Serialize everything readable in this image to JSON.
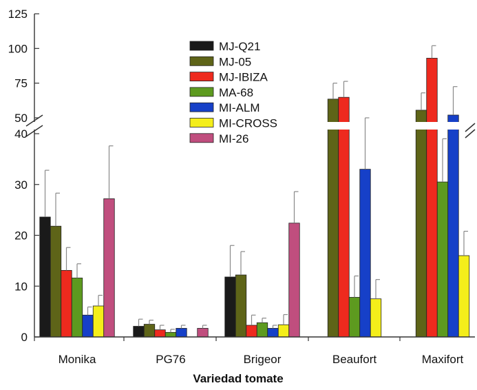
{
  "chart_data": {
    "type": "bar",
    "xlabel": "Variedad tomate",
    "ylabel": "",
    "axis_break": {
      "lower_max": 40,
      "upper_min": 50,
      "upper_max": 125
    },
    "yticks_lower": [
      0,
      10,
      20,
      30,
      40
    ],
    "yticks_upper": [
      50,
      75,
      100,
      125
    ],
    "ytick_labels_lower": [
      "0",
      "10",
      "20",
      "30",
      "40"
    ],
    "ytick_labels_upper": [
      "50",
      "75",
      "100",
      "125"
    ],
    "categories": [
      "Monika",
      "PG76",
      "Brigeor",
      "Beaufort",
      "Maxifort"
    ],
    "legend_position": "top-center",
    "series": [
      {
        "name": "MJ-Q21",
        "color": "#1a1a1a",
        "values": [
          23.6,
          2.1,
          11.8,
          null,
          null
        ],
        "errors": [
          9.2,
          1.4,
          6.2,
          null,
          null
        ]
      },
      {
        "name": "MJ-05",
        "color": "#5e6418",
        "values": [
          21.8,
          2.5,
          12.2,
          63.5,
          55.5
        ],
        "errors": [
          6.5,
          0.8,
          4.6,
          11.5,
          12.5
        ]
      },
      {
        "name": "MJ-IBIZA",
        "color": "#ee2a1e",
        "values": [
          13.1,
          1.4,
          2.3,
          64.8,
          93.0
        ],
        "errors": [
          4.5,
          0.9,
          2.0,
          11.5,
          9.0
        ]
      },
      {
        "name": "MA-68",
        "color": "#5d9a1f",
        "values": [
          11.6,
          0.9,
          2.8,
          7.8,
          30.5
        ],
        "errors": [
          2.8,
          0.6,
          0.9,
          4.2,
          8.5
        ]
      },
      {
        "name": "MI-ALM",
        "color": "#1640c8",
        "values": [
          4.3,
          1.7,
          1.7,
          33.0,
          52.0
        ],
        "errors": [
          1.6,
          0.6,
          0.6,
          10.0,
          20.5
        ]
      },
      {
        "name": "MI-CROSS",
        "color": "#f4ee1a",
        "values": [
          6.1,
          null,
          2.4,
          7.5,
          16.0
        ],
        "errors": [
          2.1,
          null,
          2.0,
          3.8,
          4.8
        ]
      },
      {
        "name": "MI-26",
        "color": "#c04e7e",
        "values": [
          27.2,
          1.7,
          22.4,
          null,
          null
        ],
        "errors": [
          10.4,
          0.6,
          6.2,
          null,
          null
        ]
      }
    ]
  }
}
